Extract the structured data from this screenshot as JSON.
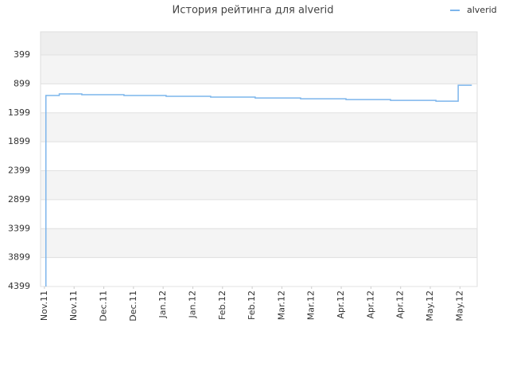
{
  "chart_data": {
    "type": "line",
    "title": "История рейтинга для alverid",
    "step": "post",
    "inverted_y": true,
    "grid": true,
    "legend": "top-right",
    "xlim": [
      -0.13,
      14.58
    ],
    "xticks": [
      {
        "value": 0,
        "label": "Nov.11"
      },
      {
        "value": 1,
        "label": "Nov.11"
      },
      {
        "value": 2,
        "label": "Dec.11"
      },
      {
        "value": 3,
        "label": "Dec.11"
      },
      {
        "value": 4,
        "label": "Jan.12"
      },
      {
        "value": 5,
        "label": "Jan.12"
      },
      {
        "value": 6,
        "label": "Feb.12"
      },
      {
        "value": 7,
        "label": "Feb.12"
      },
      {
        "value": 8,
        "label": "Mar.12"
      },
      {
        "value": 9,
        "label": "Mar.12"
      },
      {
        "value": 10,
        "label": "Apr.12"
      },
      {
        "value": 11,
        "label": "Apr.12"
      },
      {
        "value": 12,
        "label": "Apr.12"
      },
      {
        "value": 13,
        "label": "May.12"
      },
      {
        "value": 14,
        "label": "May.12"
      }
    ],
    "ylim": [
      4399,
      0
    ],
    "yticks": [
      399,
      899,
      1399,
      1899,
      2399,
      2899,
      3399,
      3899,
      4399
    ],
    "x": [
      0.05,
      0.05,
      0.5,
      1.26,
      2.68,
      4.1,
      5.6,
      7.1,
      8.63,
      10.16,
      11.66,
      13.19,
      13.94,
      14.4
    ],
    "series": [
      {
        "name": "alverid",
        "color": "#7cb5ec",
        "values": [
          4399,
          1100,
          1073,
          1086,
          1100,
          1114,
          1128,
          1142,
          1156,
          1170,
          1184,
          1197,
          922,
          922
        ]
      }
    ]
  }
}
